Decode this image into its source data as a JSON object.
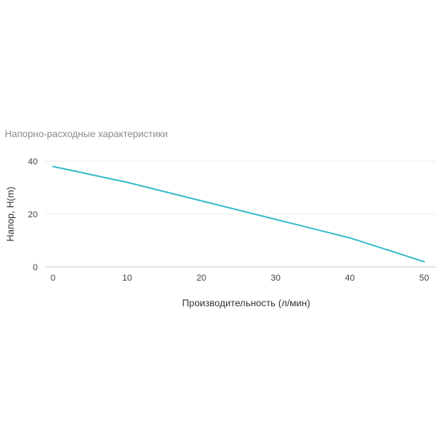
{
  "chart_data": {
    "type": "line",
    "title": "Напорно-расходные характеристики",
    "xlabel": "Производительность (л/мин)",
    "ylabel": "Напор, H(m)",
    "x": [
      0,
      10,
      20,
      30,
      40,
      50
    ],
    "series": [
      {
        "values": [
          38,
          32,
          25,
          18,
          11,
          2
        ],
        "color": "#2fb8c6"
      }
    ],
    "xlim": [
      0,
      50
    ],
    "ylim": [
      0,
      40
    ],
    "xticks": [
      "0",
      "10",
      "20",
      "30",
      "40",
      "50"
    ],
    "yticks": [
      "0",
      "20",
      "40"
    ],
    "grid": true,
    "legend": "none"
  }
}
